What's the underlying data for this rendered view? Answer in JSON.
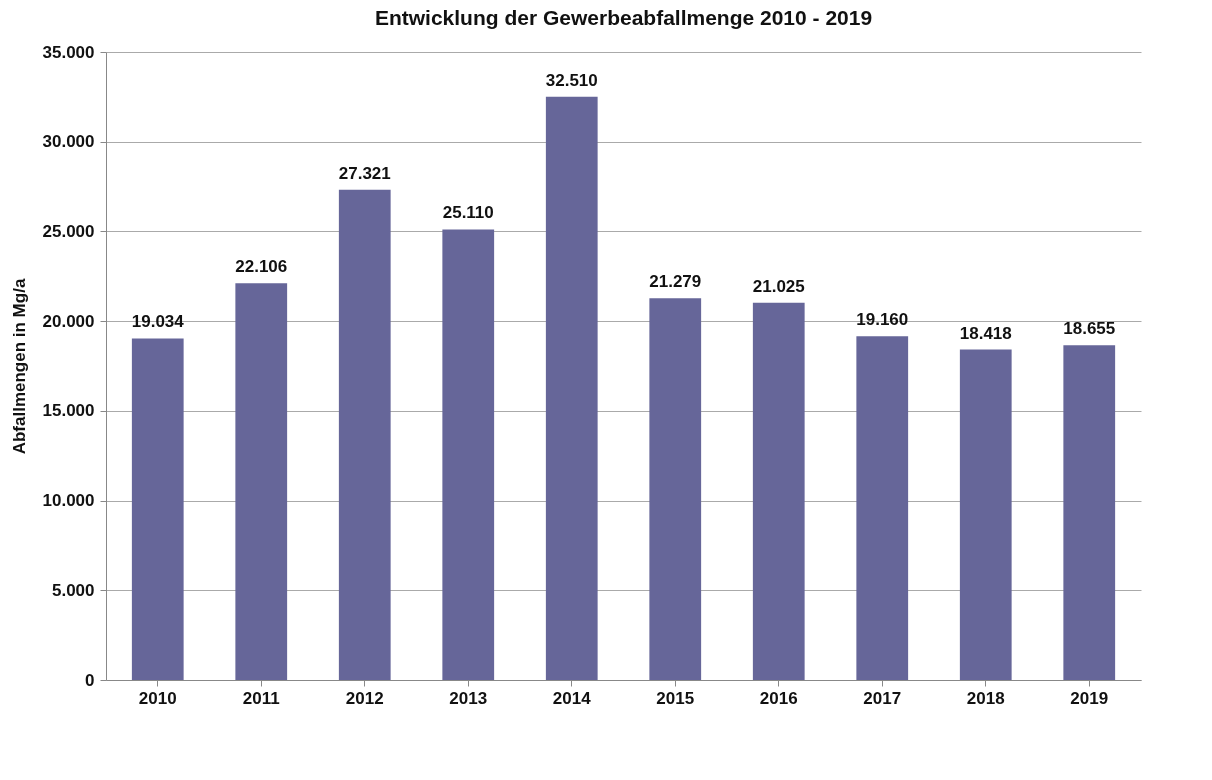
{
  "chart_data": {
    "type": "bar",
    "title": "Entwicklung der Gewerbeabfallmenge 2010 - 2019",
    "ylabel": "Abfallmengen in Mg/a",
    "categories": [
      "2010",
      "2011",
      "2012",
      "2013",
      "2014",
      "2015",
      "2016",
      "2017",
      "2018",
      "2019"
    ],
    "values": [
      19034,
      22106,
      27321,
      25110,
      32510,
      21279,
      21025,
      19160,
      18418,
      18655
    ],
    "value_labels": [
      "19.034",
      "22.106",
      "27.321",
      "25.110",
      "32.510",
      "21.279",
      "21.025",
      "19.160",
      "18.418",
      "18.655"
    ],
    "color": "#666699",
    "ylim": [
      0,
      35000
    ],
    "yticks": [
      {
        "value": 0,
        "label": "0"
      },
      {
        "value": 5000,
        "label": "5.000"
      },
      {
        "value": 10000,
        "label": "10.000"
      },
      {
        "value": 15000,
        "label": "15.000"
      },
      {
        "value": 20000,
        "label": "20.000"
      },
      {
        "value": 25000,
        "label": "25.000"
      },
      {
        "value": 30000,
        "label": "30.000"
      },
      {
        "value": 35000,
        "label": "35.000"
      }
    ],
    "grid": "y"
  }
}
